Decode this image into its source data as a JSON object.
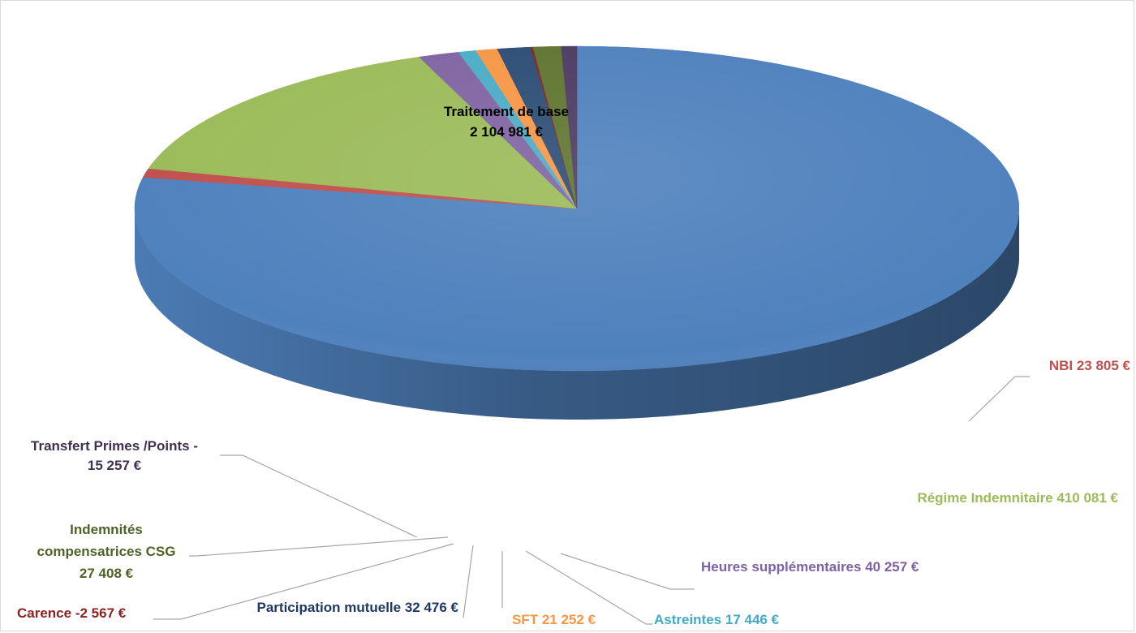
{
  "chart_data": {
    "type": "pie",
    "style": "3d-pie",
    "title": "",
    "slices": [
      {
        "label": "Traitement de base",
        "value_text": "2 104 981 €",
        "value": 2104981,
        "color": "#4f81bd",
        "label_color": "#000000"
      },
      {
        "label": "NBI",
        "value_text": "23 805 €",
        "value": 23805,
        "color": "#c0504d",
        "label_color": "#c0504d"
      },
      {
        "label": "Régime Indemnitaire",
        "value_text": "410 081 €",
        "value": 410081,
        "color": "#9bbb59",
        "label_color": "#9bbb59"
      },
      {
        "label": "Heures supplémentaires",
        "value_text": "40 257 €",
        "value": 40257,
        "color": "#8064a2",
        "label_color": "#7f5fa5"
      },
      {
        "label": "Astreintes",
        "value_text": "17 446 €",
        "value": 17446,
        "color": "#4bacc6",
        "label_color": "#41aac9"
      },
      {
        "label": "SFT",
        "value_text": "21 252 €",
        "value": 21252,
        "color": "#f79646",
        "label_color": "#f79646"
      },
      {
        "label": "Participation mutuelle",
        "value_text": "32 476 €",
        "value": 32476,
        "color": "#2c4d75",
        "label_color": "#1f3864"
      },
      {
        "label": "Carence",
        "value_text": "-2 567 €",
        "value": -2567,
        "color": "#772c2a",
        "label_color": "#8b2323"
      },
      {
        "label": "Indemnités compensatrices CSG",
        "value_text": "27 408 €",
        "value": 27408,
        "color": "#5f7530",
        "label_color": "#4f6228"
      },
      {
        "label": "Transfert Primes /Points -",
        "value_text": "15 257 €",
        "value": 15257,
        "color": "#4d3b62",
        "label_color": "#3f3151"
      }
    ]
  }
}
